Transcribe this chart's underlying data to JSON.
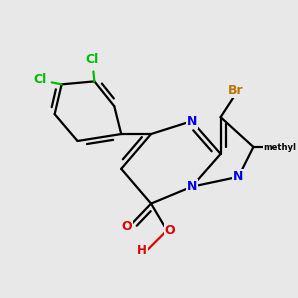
{
  "bg": "#e8e8e8",
  "bond_color": "#000000",
  "N_color": "#0000ee",
  "O_color": "#dd0000",
  "Cl_color": "#00bb00",
  "Br_color": "#bb7700",
  "lw": 1.6,
  "figsize": [
    3.0,
    3.0
  ],
  "dpi": 100
}
